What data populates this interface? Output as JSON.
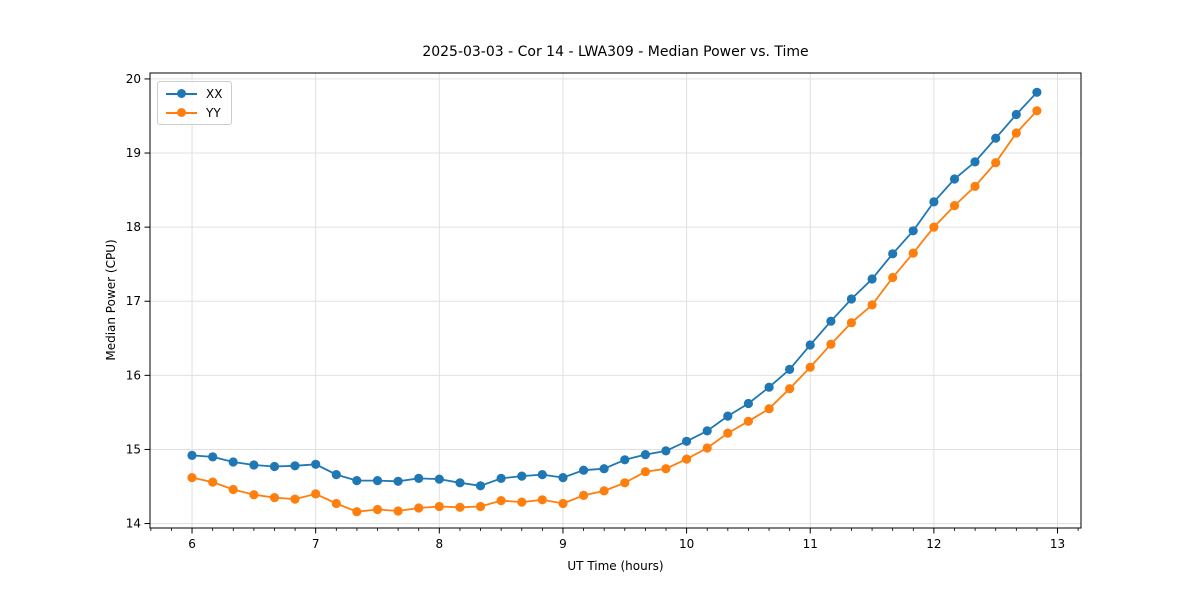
{
  "figure": {
    "title": "2025-03-03 - Cor 14 - LWA309 - Median Power vs. Time",
    "background_color": "#ffffff",
    "text_color": "#000000",
    "grid_color": "#e0e0e0",
    "spine_color": "#000000"
  },
  "chart_data": {
    "type": "line",
    "title": "2025-03-03 - Cor 14 - LWA309 - Median Power vs. Time",
    "xlabel": "UT Time (hours)",
    "ylabel": "Median Power (CPU)",
    "xlim": [
      5.66,
      13.19
    ],
    "ylim": [
      13.94,
      20.08
    ],
    "x_ticks": [
      6,
      7,
      8,
      9,
      10,
      11,
      12,
      13
    ],
    "y_ticks": [
      14,
      15,
      16,
      17,
      18,
      19,
      20
    ],
    "x_minor_tick_step": 0.16667,
    "grid": true,
    "legend_position": "upper-left",
    "marker": "circle",
    "x": [
      6.0,
      6.167,
      6.333,
      6.5,
      6.667,
      6.833,
      7.0,
      7.167,
      7.333,
      7.5,
      7.667,
      7.833,
      8.0,
      8.167,
      8.333,
      8.5,
      8.667,
      8.833,
      9.0,
      9.167,
      9.333,
      9.5,
      9.667,
      9.833,
      10.0,
      10.167,
      10.333,
      10.5,
      10.667,
      10.833,
      11.0,
      11.167,
      11.333,
      11.5,
      11.667,
      11.833,
      12.0,
      12.167,
      12.333,
      12.5,
      12.667,
      12.833
    ],
    "series": [
      {
        "name": "XX",
        "color": "#1f77b4",
        "values": [
          14.92,
          14.9,
          14.83,
          14.79,
          14.77,
          14.78,
          14.8,
          14.66,
          14.58,
          14.58,
          14.57,
          14.61,
          14.6,
          14.55,
          14.51,
          14.61,
          14.64,
          14.66,
          14.62,
          14.72,
          14.74,
          14.86,
          14.93,
          14.98,
          15.11,
          15.25,
          15.45,
          15.62,
          15.84,
          16.08,
          16.41,
          16.73,
          17.03,
          17.3,
          17.64,
          17.95,
          18.34,
          18.65,
          18.88,
          19.2,
          19.52,
          19.82
        ]
      },
      {
        "name": "YY",
        "color": "#ff7f0e",
        "values": [
          14.62,
          14.56,
          14.46,
          14.39,
          14.35,
          14.33,
          14.4,
          14.27,
          14.16,
          14.19,
          14.17,
          14.21,
          14.23,
          14.22,
          14.23,
          14.31,
          14.29,
          14.32,
          14.27,
          14.38,
          14.44,
          14.55,
          14.7,
          14.74,
          14.87,
          15.02,
          15.22,
          15.38,
          15.55,
          15.82,
          16.11,
          16.42,
          16.71,
          16.95,
          17.32,
          17.65,
          18.0,
          18.29,
          18.55,
          18.87,
          19.27,
          19.57
        ]
      }
    ]
  }
}
